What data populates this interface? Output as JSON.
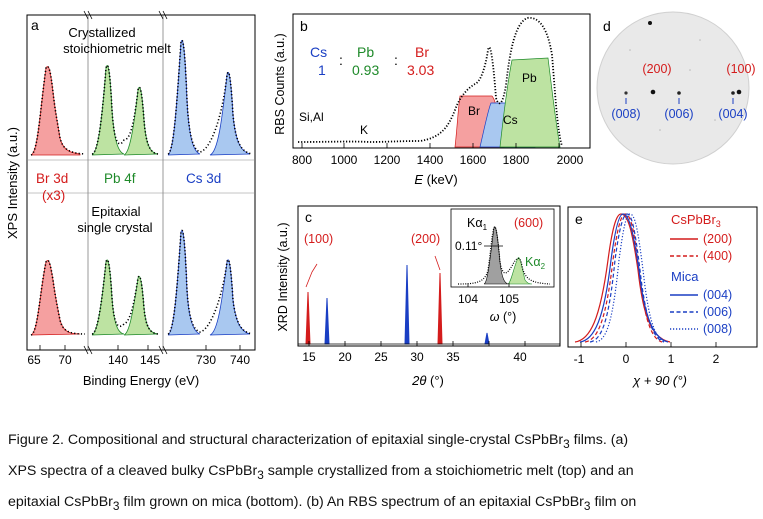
{
  "panel_a": {
    "label": "a",
    "ylabel": "XPS Intensity (a.u.)",
    "xlabel": "Binding Energy (eV)",
    "top_label": [
      "Crystallized",
      "stoichiometric melt"
    ],
    "bottom_label": [
      "Epitaxial",
      "single crystal"
    ],
    "peak_labels": [
      "Br 3d",
      "(x3)",
      "Pb 4f",
      "Cs 3d"
    ],
    "ticks": [
      "65",
      "70",
      "140",
      "145",
      "730",
      "740"
    ]
  },
  "panel_b": {
    "label": "b",
    "ylabel": "RBS Counts (a.u.)",
    "xlabel_symbol": "E",
    "xlabel_unit": " (keV)",
    "ticks": [
      "800",
      "1000",
      "1200",
      "1400",
      "1600",
      "1800",
      "2000"
    ],
    "ratio": {
      "cs": "Cs",
      "cs_val": "1",
      "pb": "Pb",
      "pb_val": "0.93",
      "br": "Br",
      "br_val": "3.03",
      "sep": ":"
    },
    "element_labels": {
      "sial": "Si,Al",
      "k": "K",
      "br": "Br",
      "cs": "Cs",
      "pb": "Pb"
    },
    "colors": {
      "cs": "#1a3fc4",
      "pb": "#1f8a2a",
      "br": "#d41c1c"
    }
  },
  "panel_c": {
    "label": "c",
    "ylabel": "XRD Intensity (a.u.)",
    "xlabel_symbol": "2θ",
    "xlabel_unit": " (°)",
    "ticks": [
      "15",
      "20",
      "25",
      "30",
      "35",
      "40"
    ],
    "peak_labels": {
      "p100": "(100)",
      "p200": "(200)"
    },
    "inset": {
      "ka1": "Kα",
      "ka1_sub": "1",
      "ka2": "Kα",
      "ka2_sub": "2",
      "p600": "(600)",
      "fwhm": "0.11°",
      "ticks": [
        "104",
        "105"
      ],
      "xlabel_symbol": "ω",
      "xlabel_unit": " (°)"
    }
  },
  "panel_d": {
    "label": "d",
    "spots_top": [
      "(200)",
      "(100)"
    ],
    "spots_bottom": [
      "(008)",
      "(006)",
      "(004)"
    ]
  },
  "panel_e": {
    "label": "e",
    "xlabel": "χ + 90 (°)",
    "ticks": [
      "-1",
      "0",
      "1",
      "2"
    ],
    "legend": {
      "group1": "CsPbBr",
      "group1_sub": "3",
      "g1_items": [
        "(200)",
        "(400)"
      ],
      "group2": "Mica",
      "g2_items": [
        "(004)",
        "(006)",
        "(008)"
      ]
    }
  },
  "caption": {
    "line1": "Figure 2. Compositional and structural characterization of epitaxial single-crystal CsPbBr",
    "line1_sub": "3",
    "line1_end": " films.  (a)",
    "line2a": "XPS spectra of a cleaved bulky CsPbBr",
    "line2_sub": "3",
    "line2b": " sample crystallized from a stoichiometric melt (top) and an",
    "line3a": "epitaxial CsPbBr",
    "line3_sub": "3",
    "line3b": " film grown on mica (bottom).  (b) An RBS spectrum of an epitaxial CsPbBr",
    "line3_sub2": "3",
    "line3c": " film on"
  }
}
